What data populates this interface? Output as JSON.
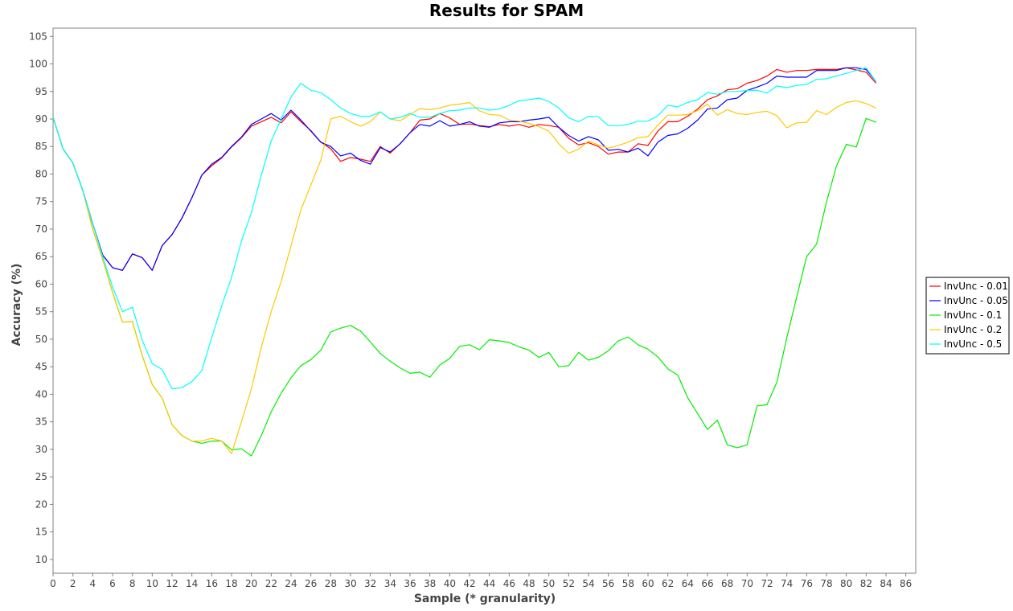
{
  "chart_data": {
    "type": "line",
    "title": "Results for SPAM",
    "xlabel": "Sample (* granularity)",
    "ylabel": "Accuracy (%)",
    "xlim": [
      0,
      87
    ],
    "ylim": [
      7.5,
      106.5
    ],
    "x_ticks": [
      0,
      2,
      4,
      6,
      8,
      10,
      12,
      14,
      16,
      18,
      20,
      22,
      24,
      26,
      28,
      30,
      32,
      34,
      36,
      38,
      40,
      42,
      44,
      46,
      48,
      50,
      52,
      54,
      56,
      58,
      60,
      62,
      64,
      66,
      68,
      70,
      72,
      74,
      76,
      78,
      80,
      82,
      84,
      86
    ],
    "y_ticks": [
      10,
      15,
      20,
      25,
      30,
      35,
      40,
      45,
      50,
      55,
      60,
      65,
      70,
      75,
      80,
      85,
      90,
      95,
      100,
      105
    ],
    "grid": false,
    "legend_position": "right",
    "x": [
      0,
      1,
      2,
      3,
      4,
      5,
      6,
      7,
      8,
      9,
      10,
      11,
      12,
      13,
      14,
      15,
      16,
      17,
      18,
      19,
      20,
      21,
      22,
      23,
      24,
      25,
      26,
      27,
      28,
      29,
      30,
      31,
      32,
      33,
      34,
      35,
      36,
      37,
      38,
      39,
      40,
      41,
      42,
      43,
      44,
      45,
      46,
      47,
      48,
      49,
      50,
      51,
      52,
      53,
      54,
      55,
      56,
      57,
      58,
      59,
      60,
      61,
      62,
      63,
      64,
      65,
      66,
      67,
      68,
      69,
      70,
      71,
      72,
      73,
      74,
      75,
      76,
      77,
      78,
      79,
      80,
      81,
      82,
      83
    ],
    "series": [
      {
        "name": "InvUnc - 0.01",
        "color": "#ff0000",
        "values": [
          90.3,
          84.6,
          82.0,
          77.0,
          71.0,
          65.3,
          63.0,
          62.5,
          65.5,
          64.8,
          62.5,
          67.0,
          69.0,
          72.0,
          75.7,
          79.8,
          81.5,
          82.9,
          84.9,
          86.6,
          88.7,
          89.5,
          90.3,
          89.3,
          91.3,
          89.5,
          87.9,
          85.8,
          84.6,
          82.3,
          83.0,
          82.7,
          82.3,
          85.0,
          83.8,
          85.5,
          87.5,
          89.8,
          90.0,
          91.0,
          90.2,
          89.0,
          89.1,
          88.8,
          88.6,
          89.0,
          88.7,
          89.0,
          88.5,
          89.0,
          88.8,
          88.5,
          86.5,
          85.3,
          85.7,
          85.0,
          83.6,
          84.0,
          84.0,
          85.5,
          85.2,
          87.8,
          89.5,
          89.5,
          90.5,
          91.8,
          93.5,
          94.2,
          95.3,
          95.5,
          96.5,
          97.0,
          97.8,
          99.0,
          98.5,
          98.8,
          98.8,
          99.0,
          99.0,
          99.0,
          99.3,
          98.9,
          98.5,
          96.5
        ]
      },
      {
        "name": "InvUnc - 0.05",
        "color": "#0000ff",
        "values": [
          90.3,
          84.6,
          82.0,
          77.0,
          71.0,
          65.3,
          63.0,
          62.5,
          65.5,
          64.8,
          62.5,
          67.0,
          69.0,
          72.0,
          75.7,
          79.8,
          81.8,
          83.0,
          85.0,
          86.7,
          89.0,
          90.0,
          91.0,
          89.8,
          91.6,
          89.8,
          87.8,
          85.8,
          85.0,
          83.3,
          83.8,
          82.5,
          81.8,
          84.8,
          84.0,
          85.5,
          87.5,
          89.0,
          88.7,
          89.7,
          88.7,
          89.0,
          89.5,
          88.7,
          88.5,
          89.3,
          89.5,
          89.5,
          89.8,
          90.0,
          90.3,
          88.5,
          87.0,
          86.0,
          86.8,
          86.2,
          84.3,
          84.5,
          84.0,
          84.7,
          83.3,
          85.8,
          87.0,
          87.3,
          88.3,
          89.8,
          91.8,
          92.0,
          93.5,
          93.8,
          95.2,
          95.8,
          96.5,
          97.8,
          97.6,
          97.6,
          97.6,
          98.8,
          98.8,
          98.8,
          99.3,
          99.3,
          99.0,
          96.8
        ]
      },
      {
        "name": "InvUnc - 0.1",
        "color": "#00ee00",
        "values": [
          90.3,
          84.6,
          82.0,
          77.0,
          70.0,
          64.5,
          58.5,
          53.1,
          53.2,
          47.0,
          41.8,
          39.3,
          34.5,
          32.5,
          31.5,
          31.1,
          31.5,
          31.5,
          29.9,
          30.1,
          28.8,
          32.5,
          36.8,
          40.2,
          43.0,
          45.2,
          46.3,
          48.0,
          51.3,
          52.0,
          52.5,
          51.5,
          49.5,
          47.4,
          46.0,
          44.8,
          43.8,
          44.0,
          43.1,
          45.3,
          46.5,
          48.7,
          49.0,
          48.1,
          49.9,
          49.7,
          49.4,
          48.6,
          48.0,
          46.7,
          47.6,
          45.0,
          45.2,
          47.6,
          46.2,
          46.7,
          47.9,
          49.7,
          50.4,
          49.0,
          48.2,
          46.8,
          44.6,
          43.5,
          39.4,
          36.5,
          33.6,
          35.3,
          30.8,
          30.3,
          30.8,
          37.9,
          38.1,
          42.2,
          50.3,
          57.7,
          65.0,
          67.3,
          74.9,
          81.4,
          85.4,
          84.9,
          90.1,
          89.4
        ]
      },
      {
        "name": "InvUnc - 0.2",
        "color": "#ffc800",
        "values": [
          90.3,
          84.6,
          82.0,
          77.0,
          70.0,
          64.5,
          58.5,
          53.1,
          53.2,
          47.0,
          41.8,
          39.3,
          34.5,
          32.5,
          31.5,
          31.5,
          32.0,
          31.5,
          29.2,
          35.0,
          41.0,
          48.5,
          55.0,
          60.5,
          67.0,
          73.5,
          78.0,
          82.5,
          90.0,
          90.5,
          89.5,
          88.7,
          89.5,
          91.3,
          90.0,
          89.7,
          90.8,
          91.9,
          91.7,
          92.0,
          92.5,
          92.7,
          93.0,
          91.5,
          90.8,
          90.7,
          89.8,
          89.6,
          89.2,
          88.6,
          87.8,
          85.5,
          83.8,
          84.5,
          86.0,
          85.3,
          84.7,
          85.2,
          85.8,
          86.6,
          86.8,
          88.9,
          90.7,
          90.7,
          90.8,
          91.5,
          92.7,
          90.7,
          91.7,
          91.0,
          90.8,
          91.2,
          91.4,
          90.6,
          88.4,
          89.3,
          89.4,
          91.5,
          90.8,
          92.1,
          93.0,
          93.3,
          92.8,
          92.0
        ]
      },
      {
        "name": "InvUnc - 0.5",
        "color": "#00ffff",
        "values": [
          90.3,
          84.6,
          82.0,
          77.0,
          71.0,
          65.0,
          59.5,
          55.0,
          55.8,
          49.8,
          45.6,
          44.5,
          41.0,
          41.2,
          42.3,
          44.3,
          50.3,
          56.0,
          61.2,
          67.8,
          73.0,
          79.8,
          86.0,
          90.0,
          94.0,
          96.5,
          95.2,
          94.8,
          93.5,
          92.0,
          91.0,
          90.5,
          90.5,
          91.3,
          90.0,
          90.3,
          91.0,
          90.3,
          90.3,
          91.0,
          91.5,
          91.6,
          92.0,
          92.0,
          91.6,
          91.8,
          92.5,
          93.3,
          93.5,
          93.8,
          93.2,
          92.0,
          90.2,
          89.5,
          90.5,
          90.4,
          88.8,
          88.8,
          89.0,
          89.6,
          89.6,
          90.6,
          92.5,
          92.2,
          93.0,
          93.5,
          94.8,
          94.5,
          95.0,
          95.0,
          95.2,
          95.2,
          94.7,
          96.0,
          95.7,
          96.1,
          96.3,
          97.2,
          97.3,
          97.8,
          98.3,
          98.8,
          99.3,
          96.8
        ]
      }
    ]
  }
}
